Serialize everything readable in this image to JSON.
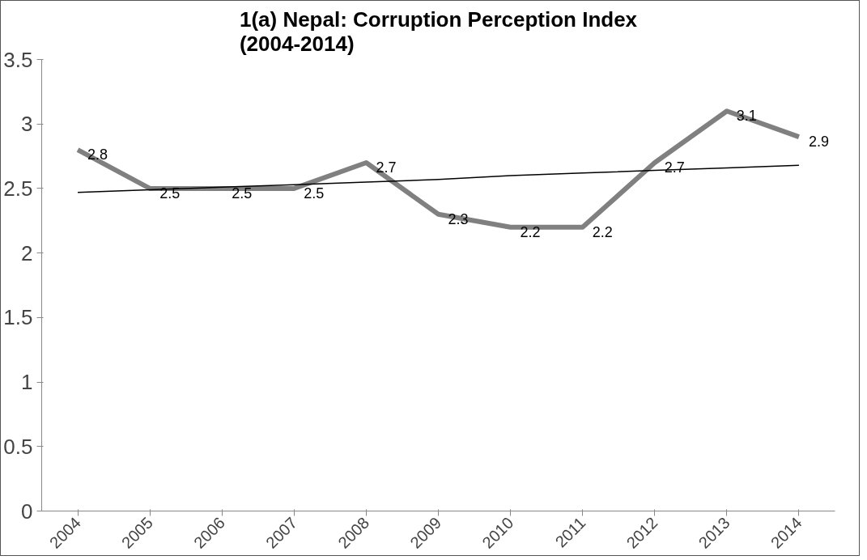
{
  "chart_data": {
    "type": "line",
    "title": "1(a) Nepal: Corruption Perception Index\n(2004-2014)",
    "categories": [
      "2004",
      "2005",
      "2006",
      "2007",
      "2008",
      "2009",
      "2010",
      "2011",
      "2012",
      "2013",
      "2014"
    ],
    "series": [
      {
        "color": "#808080",
        "values": [
          2.8,
          2.5,
          2.5,
          2.5,
          2.7,
          2.3,
          2.2,
          2.2,
          2.7,
          3.1,
          2.9
        ]
      },
      {
        "type": "line",
        "color": "#000000",
        "values": [
          2.47,
          2.49,
          2.51,
          2.53,
          2.55,
          2.57,
          2.6,
          2.62,
          2.64,
          2.66,
          2.68
        ],
        "value_labels": [
          null,
          null,
          null,
          null,
          null,
          null,
          null,
          null,
          null,
          null,
          null
        ]
      }
    ],
    "ylim": [
      0,
      3.5
    ],
    "yticks": [
      0,
      0.5,
      1,
      1.5,
      2,
      2.5,
      3,
      3.5
    ],
    "data_labels": true,
    "grid": false
  }
}
